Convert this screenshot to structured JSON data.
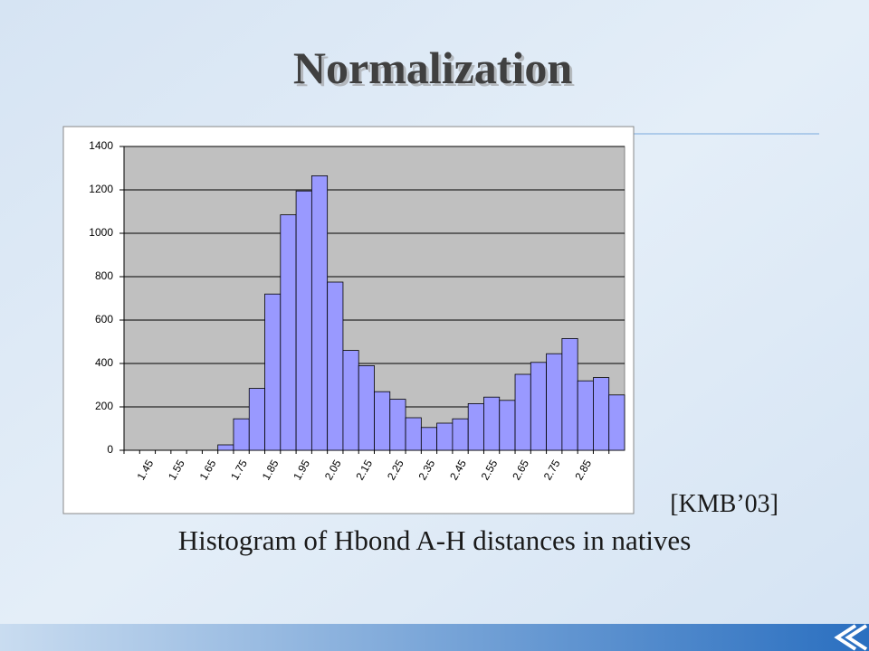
{
  "slide": {
    "title": "Normalization",
    "citation": "[KMB’03]",
    "caption": "Histogram of Hbond A-H distances in natives"
  },
  "chart_data": {
    "type": "bar",
    "categories": [
      null,
      "1.45",
      null,
      "1.55",
      null,
      "1.65",
      null,
      "1.75",
      null,
      "1.85",
      null,
      "1.95",
      null,
      "2.05",
      null,
      "2.15",
      null,
      "2.25",
      null,
      "2.35",
      null,
      "2.45",
      null,
      "2.55",
      null,
      "2.65",
      null,
      "2.75",
      null,
      "2.85",
      null,
      null
    ],
    "values": [
      0,
      0,
      0,
      0,
      0,
      0,
      25,
      145,
      285,
      720,
      1085,
      1195,
      1265,
      775,
      460,
      390,
      270,
      235,
      150,
      105,
      125,
      145,
      215,
      245,
      230,
      350,
      405,
      445,
      515,
      320,
      335,
      255
    ],
    "color": "#9999ff",
    "ylim": [
      0,
      1400
    ],
    "yticks": [
      0,
      200,
      400,
      600,
      800,
      1000,
      1200,
      1400
    ],
    "grid": true
  }
}
